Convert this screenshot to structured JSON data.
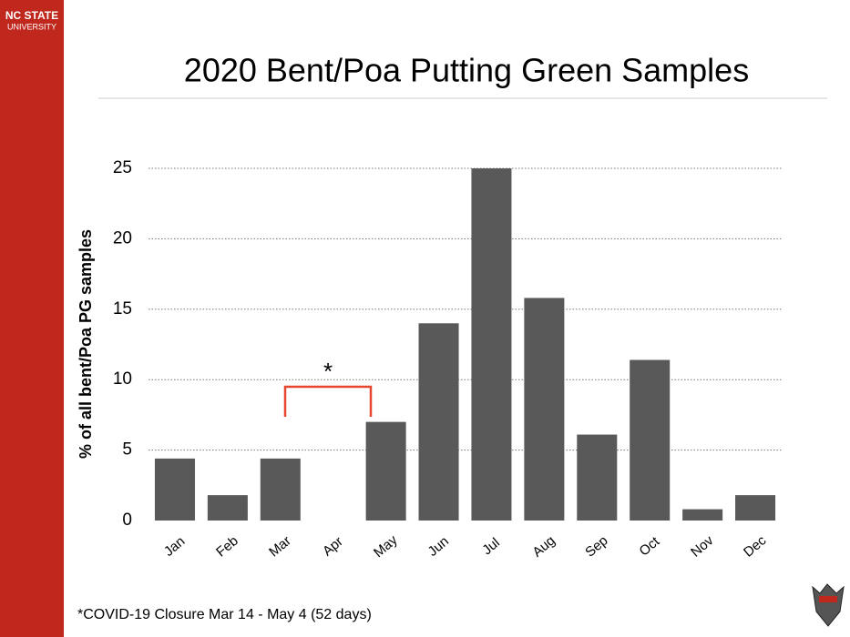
{
  "brand": {
    "name": "NC STATE",
    "unit": "UNIVERSITY"
  },
  "chart_data": {
    "type": "bar",
    "title": "2020 Bent/Poa Putting Green Samples",
    "y_label": "% of all bent/Poa PG samples",
    "categories": [
      "Jan",
      "Feb",
      "Mar",
      "Apr",
      "May",
      "Jun",
      "Jul",
      "Aug",
      "Sep",
      "Oct",
      "Nov",
      "Dec"
    ],
    "values": [
      4.4,
      1.8,
      4.4,
      0,
      7.0,
      14.0,
      25,
      15.8,
      6.1,
      11.4,
      0.8,
      1.8
    ],
    "color": "#595959",
    "ylim": [
      0,
      25
    ],
    "yticks": [
      0,
      5,
      10,
      15,
      20,
      25
    ],
    "grid": true,
    "annotation": "*",
    "footnote": "*COVID-19 Closure Mar 14 - May 4 (52 days)"
  }
}
